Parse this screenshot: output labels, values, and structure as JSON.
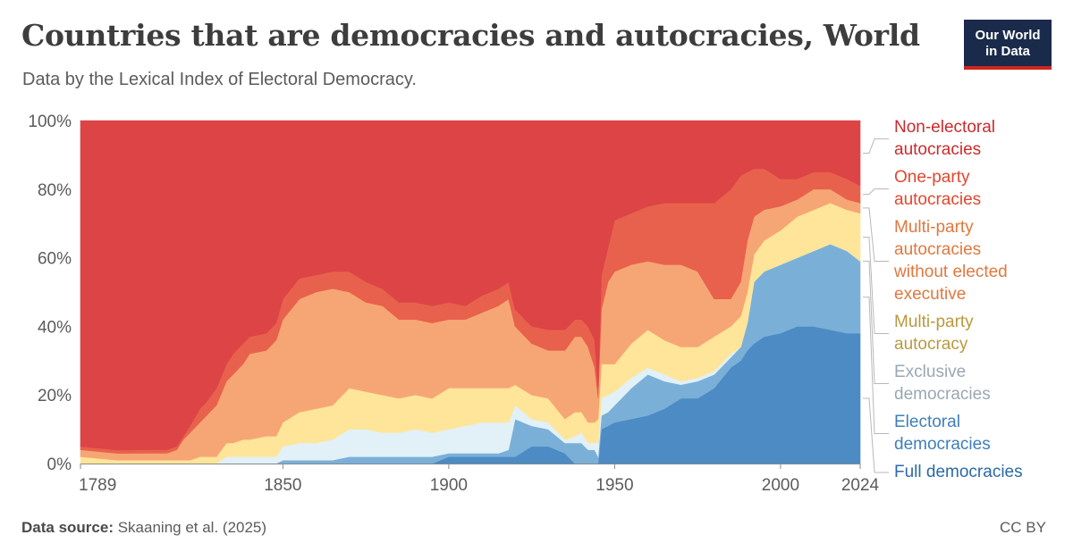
{
  "header": {
    "title": "Countries that are democracies and autocracies, World",
    "subtitle": "Data by the Lexical Index of Electoral Democracy.",
    "logo_line1": "Our World",
    "logo_line2": "in Data"
  },
  "footer": {
    "source_label": "Data source:",
    "source_text": "Skaaning et al. (2025)",
    "license": "CC BY"
  },
  "chart_data": {
    "type": "area",
    "stacked": true,
    "normalized": true,
    "title": "Countries that are democracies and autocracies, World",
    "subtitle": "Data by the Lexical Index of Electoral Democracy.",
    "xlabel": "",
    "ylabel": "",
    "xlim": [
      1789,
      2024
    ],
    "ylim": [
      0,
      100
    ],
    "x_ticks": [
      1789,
      1850,
      1900,
      1950,
      2000,
      2024
    ],
    "y_ticks": [
      "0%",
      "20%",
      "40%",
      "60%",
      "80%",
      "100%"
    ],
    "grid": false,
    "legend_position": "right",
    "x": [
      1789,
      1800,
      1810,
      1815,
      1818,
      1820,
      1822,
      1825,
      1827,
      1830,
      1833,
      1835,
      1838,
      1840,
      1845,
      1848,
      1850,
      1855,
      1860,
      1865,
      1870,
      1875,
      1880,
      1885,
      1890,
      1895,
      1900,
      1905,
      1910,
      1915,
      1918,
      1920,
      1925,
      1930,
      1935,
      1938,
      1940,
      1942,
      1944,
      1945,
      1946,
      1948,
      1950,
      1955,
      1960,
      1965,
      1970,
      1975,
      1980,
      1985,
      1988,
      1990,
      1992,
      1995,
      2000,
      2005,
      2010,
      2015,
      2020,
      2024
    ],
    "series": [
      {
        "name": "Full democracies",
        "color": "#4d8bc4",
        "values": [
          0,
          0,
          0,
          0,
          0,
          0,
          0,
          0,
          0,
          0,
          0,
          0,
          0,
          0,
          0,
          0,
          0,
          0,
          0,
          0,
          0,
          0,
          0,
          0,
          0,
          0,
          2,
          2,
          2,
          2,
          2,
          2,
          5,
          5,
          3,
          0,
          0,
          0,
          0,
          0,
          10,
          11,
          12,
          13,
          14,
          16,
          19,
          19,
          22,
          28,
          30,
          33,
          35,
          37,
          38,
          40,
          40,
          39,
          38,
          38
        ]
      },
      {
        "name": "Electoral democracies",
        "color": "#7ab0d8",
        "values": [
          0,
          0,
          0,
          0,
          0,
          0,
          0,
          0,
          0,
          0,
          0,
          0,
          0,
          0,
          0,
          0,
          1,
          1,
          1,
          1,
          2,
          2,
          2,
          2,
          2,
          2,
          1,
          1,
          1,
          1,
          2,
          11,
          6,
          5,
          3,
          6,
          6,
          4,
          4,
          2,
          4,
          4,
          5,
          9,
          12,
          8,
          4,
          5,
          4,
          3,
          4,
          8,
          18,
          19,
          20,
          20,
          22,
          25,
          24,
          21
        ]
      },
      {
        "name": "Exclusive democracies",
        "color": "#e2f0f7",
        "values": [
          0,
          0,
          0,
          0,
          0,
          0,
          0,
          0,
          0,
          0,
          2,
          2,
          2,
          2,
          2,
          2,
          4,
          5,
          5,
          6,
          8,
          8,
          7,
          7,
          8,
          7,
          7,
          8,
          9,
          9,
          8,
          4,
          2,
          2,
          1,
          2,
          3,
          2,
          2,
          4,
          5,
          5,
          4,
          3,
          2,
          2,
          1,
          1,
          1,
          1,
          0,
          0,
          0,
          0,
          0,
          0,
          0,
          0,
          0,
          0
        ]
      },
      {
        "name": "Multi-party autocracy",
        "color": "#fee59a",
        "values": [
          2,
          1,
          1,
          1,
          1,
          1,
          1,
          2,
          2,
          2,
          4,
          4,
          5,
          5,
          6,
          6,
          7,
          9,
          10,
          10,
          12,
          11,
          11,
          10,
          10,
          10,
          12,
          11,
          10,
          10,
          10,
          6,
          7,
          7,
          6,
          7,
          6,
          6,
          6,
          7,
          10,
          9,
          8,
          10,
          11,
          10,
          10,
          9,
          10,
          8,
          9,
          9,
          8,
          9,
          10,
          12,
          12,
          12,
          12,
          14
        ]
      },
      {
        "name": "Multi-party autocracies without elected executive",
        "color": "#f6a674",
        "values": [
          2,
          2,
          2,
          2,
          3,
          6,
          8,
          10,
          12,
          15,
          18,
          20,
          22,
          25,
          25,
          28,
          30,
          33,
          34,
          34,
          28,
          26,
          26,
          23,
          22,
          22,
          20,
          20,
          22,
          24,
          26,
          17,
          15,
          14,
          20,
          22,
          22,
          22,
          16,
          6,
          16,
          24,
          27,
          23,
          20,
          22,
          24,
          22,
          11,
          8,
          10,
          15,
          11,
          9,
          7,
          5,
          6,
          4,
          3,
          3
        ]
      },
      {
        "name": "One-party autocracies",
        "color": "#e8614c",
        "values": [
          1,
          1,
          1,
          1,
          1,
          1,
          2,
          4,
          4,
          5,
          5,
          6,
          6,
          5,
          5,
          5,
          6,
          6,
          5,
          5,
          6,
          6,
          5,
          5,
          5,
          5,
          5,
          4,
          5,
          5,
          5,
          5,
          5,
          6,
          6,
          5,
          5,
          6,
          8,
          3,
          10,
          10,
          15,
          15,
          16,
          18,
          18,
          20,
          28,
          32,
          31,
          20,
          14,
          12,
          8,
          6,
          5,
          5,
          6,
          5
        ]
      },
      {
        "name": "Non-electoral autocracies",
        "color": "#dc4446",
        "values": [
          95,
          97,
          96,
          96,
          95,
          92,
          89,
          84,
          82,
          78,
          71,
          68,
          65,
          63,
          62,
          59,
          52,
          46,
          45,
          44,
          44,
          47,
          49,
          53,
          53,
          54,
          53,
          54,
          51,
          49,
          47,
          55,
          60,
          61,
          61,
          58,
          58,
          60,
          64,
          78,
          45,
          37,
          29,
          27,
          25,
          24,
          24,
          24,
          24,
          20,
          16,
          15,
          14,
          14,
          17,
          17,
          15,
          15,
          17,
          19
        ]
      }
    ],
    "legend": [
      {
        "name": "Non-electoral autocracies",
        "lines": [
          "Non-electoral",
          "autocracies"
        ],
        "text_color": "#cc2a2c"
      },
      {
        "name": "One-party autocracies",
        "lines": [
          "One-party",
          "autocracies"
        ],
        "text_color": "#e2462f"
      },
      {
        "name": "Multi-party autocracies without elected executive",
        "lines": [
          "Multi-party",
          "autocracies",
          "without elected",
          "executive"
        ],
        "text_color": "#e0783f"
      },
      {
        "name": "Multi-party autocracy",
        "lines": [
          "Multi-party",
          "autocracy"
        ],
        "text_color": "#b89a40"
      },
      {
        "name": "Exclusive democracies",
        "lines": [
          "Exclusive",
          "democracies"
        ],
        "text_color": "#9aa7b3"
      },
      {
        "name": "Electoral democracies",
        "lines": [
          "Electoral",
          "democracies"
        ],
        "text_color": "#3f7fb8"
      },
      {
        "name": "Full democracies",
        "lines": [
          "Full democracies"
        ],
        "text_color": "#2b6aa6"
      }
    ]
  }
}
